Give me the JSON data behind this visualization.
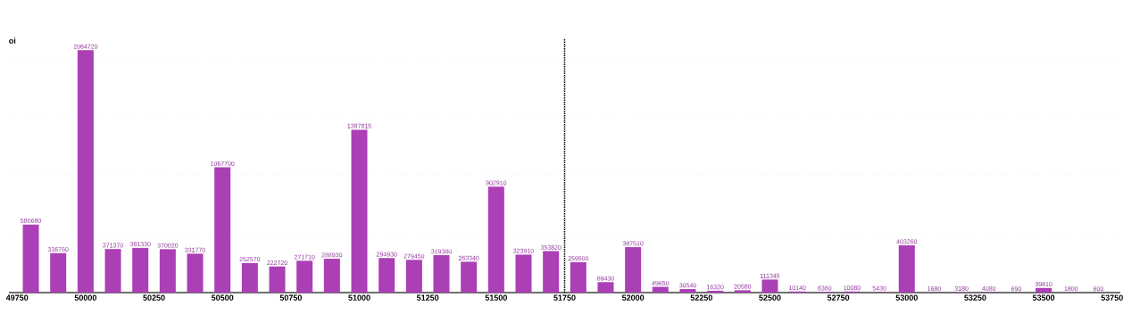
{
  "chart_data": {
    "type": "bar",
    "ylabel": "oi",
    "x": [
      49800,
      49900,
      50000,
      50100,
      50200,
      50300,
      50400,
      50500,
      50600,
      50700,
      50800,
      50900,
      51000,
      51100,
      51200,
      51300,
      51400,
      51500,
      51600,
      51700,
      51800,
      51900,
      52000,
      52100,
      52200,
      52300,
      52400,
      52500,
      52600,
      52700,
      52800,
      52900,
      53000,
      53100,
      53200,
      53300,
      53400,
      53500,
      53600,
      53700
    ],
    "values": [
      580680,
      336750,
      2064720,
      371370,
      381330,
      370020,
      331770,
      1067700,
      252570,
      222720,
      271710,
      288930,
      1387815,
      294930,
      279450,
      319380,
      263340,
      902910,
      323910,
      353820,
      259500,
      89430,
      387510,
      49650,
      30540,
      16320,
      20580,
      111345,
      10140,
      6360,
      10080,
      5430,
      403260,
      1680,
      3180,
      4080,
      690,
      39810,
      1800,
      600
    ],
    "color": "#ab3fb5",
    "data_labels": true,
    "xlim": [
      49720,
      53780
    ],
    "xticks": [
      49750,
      50000,
      50250,
      50500,
      50750,
      51000,
      51250,
      51500,
      51750,
      52000,
      52250,
      52500,
      52750,
      53000,
      53250,
      53500,
      53750
    ],
    "yticks": [
      {
        "value": 500000,
        "label": null
      },
      {
        "value": 1000000,
        "label": null
      },
      {
        "value": 1500000,
        "label": null
      },
      {
        "value": 2000000,
        "label": null
      }
    ],
    "tick_labels": "x",
    "grid": "y",
    "ref_lines": [
      {
        "axis": "x",
        "value": 51750,
        "line_style": "dotted",
        "color": "#000000"
      }
    ]
  }
}
